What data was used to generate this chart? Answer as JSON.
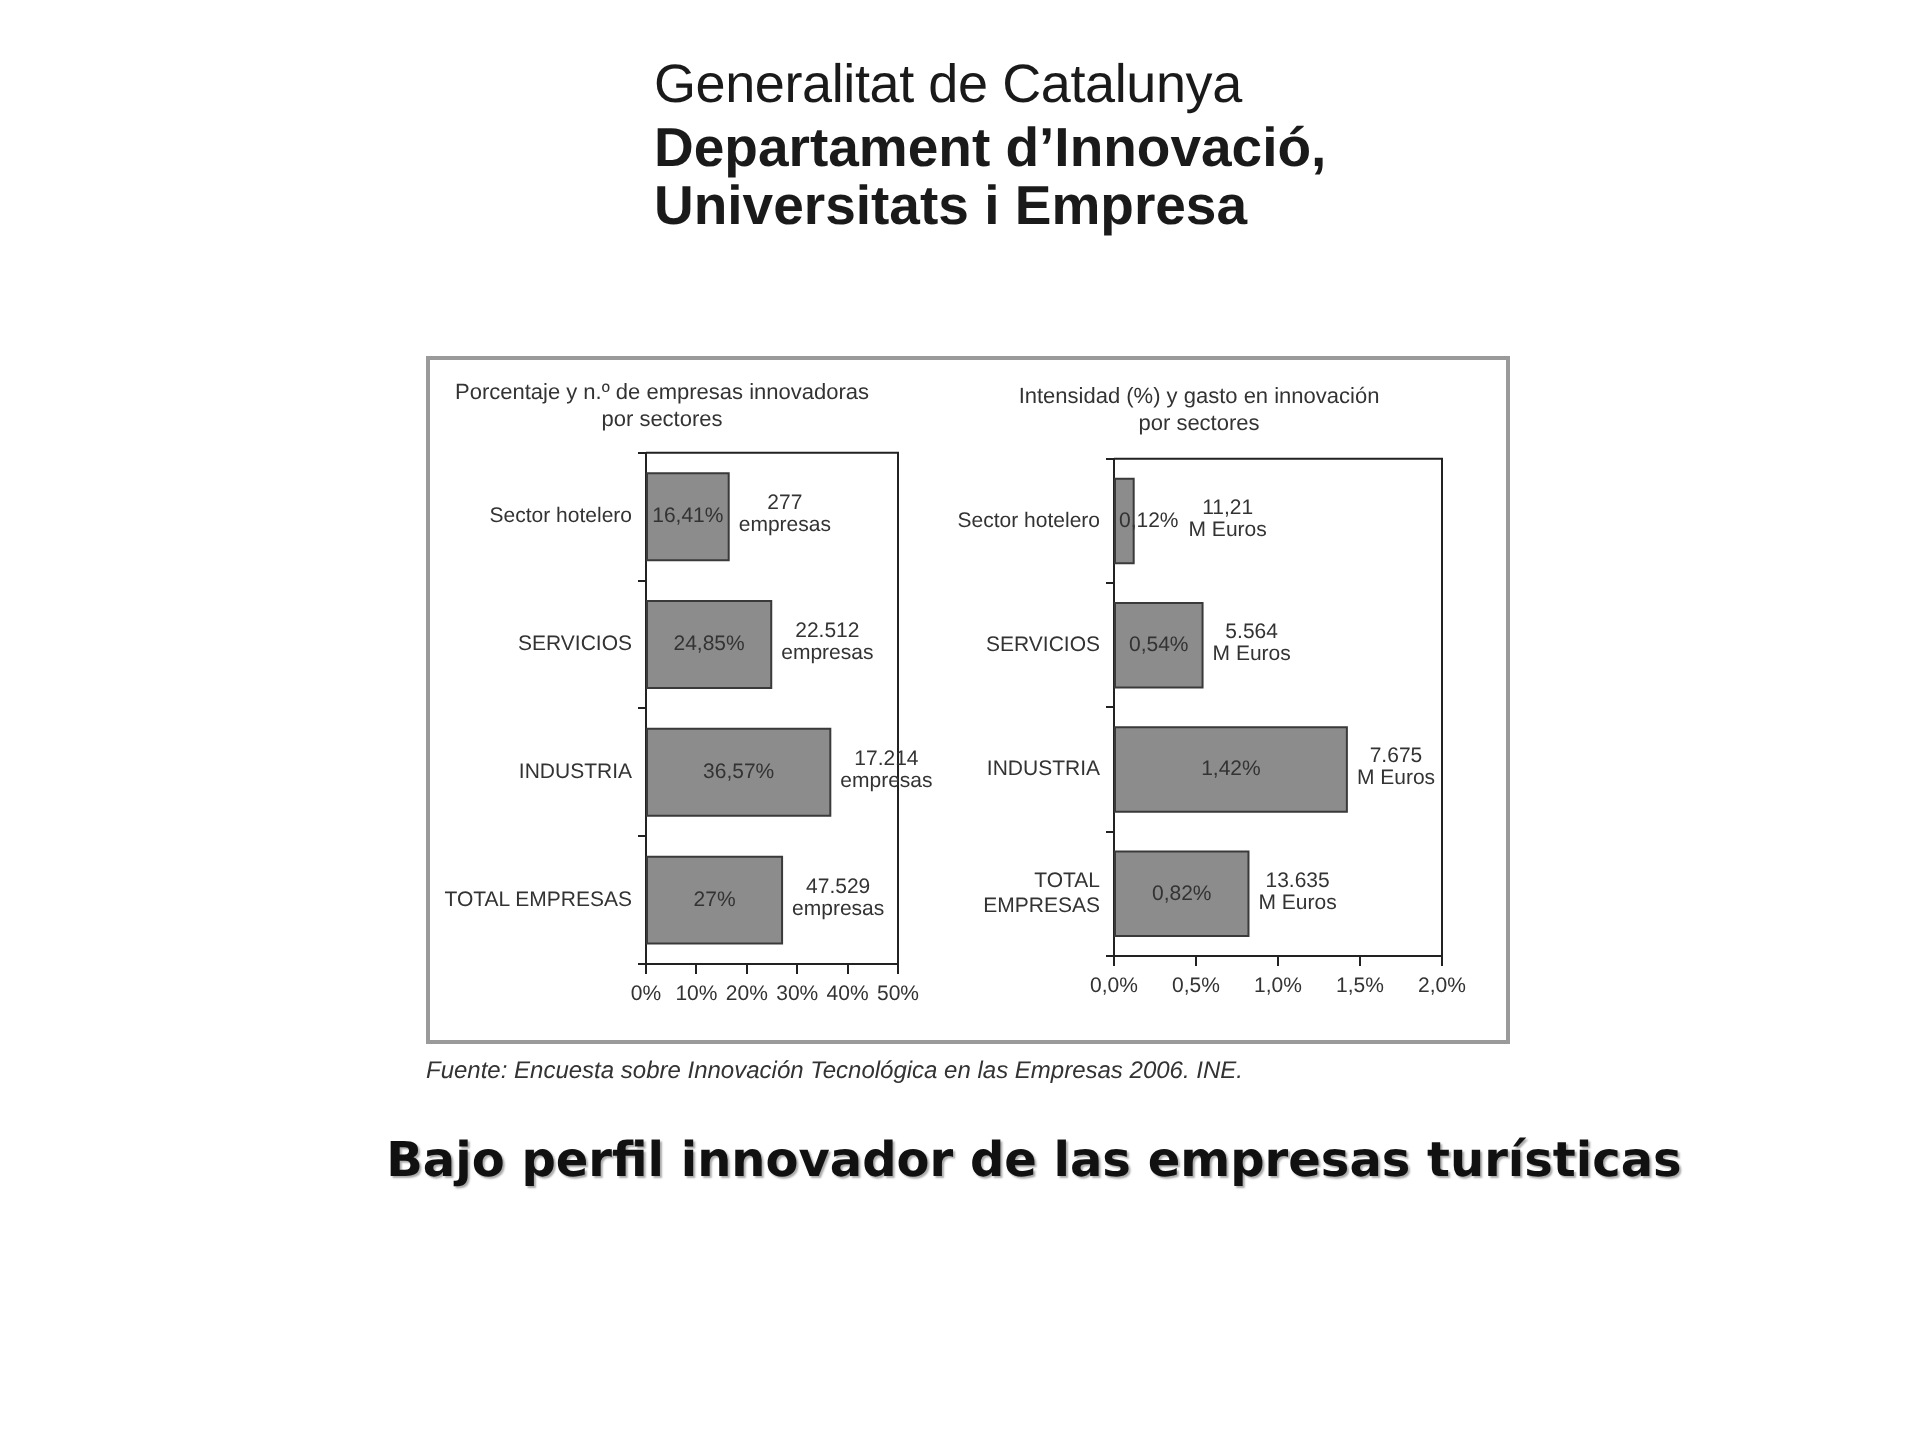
{
  "chart_data": [
    {
      "type": "bar",
      "orientation": "horizontal",
      "title": "Porcentaje y n.º de empresas innovadoras\npor sectores",
      "categories": [
        "Sector hotelero",
        "SERVICIOS",
        "INDUSTRIA",
        "TOTAL EMPRESAS"
      ],
      "values": [
        16.41,
        24.85,
        36.57,
        27
      ],
      "color": "#8c8c8c",
      "value_labels": [
        "16,41%",
        "24,85%",
        "36,57%",
        "27%"
      ],
      "xlim": [
        0,
        50
      ],
      "xticks": [
        {
          "value": 0,
          "label": "0%"
        },
        {
          "value": 10,
          "label": "10%"
        },
        {
          "value": 20,
          "label": "20%"
        },
        {
          "value": 30,
          "label": "30%"
        },
        {
          "value": 40,
          "label": "40%"
        },
        {
          "value": 50,
          "label": "50%"
        }
      ],
      "annotations": [
        {
          "text": "277\nempresas",
          "x": 16.41,
          "y": "Sector hotelero"
        },
        {
          "text": "22.512\nempresas",
          "x": 24.85,
          "y": "SERVICIOS"
        },
        {
          "text": "17.214\nempresas",
          "x": 36.57,
          "y": "INDUSTRIA"
        },
        {
          "text": "47.529\nempresas",
          "x": 27,
          "y": "TOTAL EMPRESAS"
        },
        "Generalitat de Catalunya",
        "Departament d’Innovació,",
        "Universitats i Empresa",
        "Fuente: Encuesta sobre Innovación Tecnológica en las Empresas 2006. INE.",
        "Bajo perfil innovador de las empresas turísticas"
      ]
    },
    {
      "type": "bar",
      "orientation": "horizontal",
      "title": "Intensidad (%) y gasto en innovación\npor sectores",
      "categories": [
        "Sector hotelero",
        "SERVICIOS",
        "INDUSTRIA",
        "TOTAL\nEMPRESAS"
      ],
      "values": [
        0.12,
        0.54,
        1.42,
        0.82
      ],
      "color": "#8c8c8c",
      "value_labels": [
        "0,12%",
        "0,54%",
        "1,42%",
        "0,82%"
      ],
      "xlim": [
        0,
        2
      ],
      "xticks": [
        {
          "value": 0,
          "label": "0,0%"
        },
        {
          "value": 0.5,
          "label": "0,5%"
        },
        {
          "value": 1,
          "label": "1,0%"
        },
        {
          "value": 1.5,
          "label": "1,5%"
        },
        {
          "value": 2,
          "label": "2,0%"
        }
      ],
      "annotations": [
        {
          "text": "11,21\nM Euros",
          "x": 0.12,
          "y": "Sector hotelero"
        },
        {
          "text": "5.564\nM Euros",
          "x": 0.54,
          "y": "SERVICIOS"
        },
        {
          "text": "7.675\nM Euros",
          "x": 1.42,
          "y": "INDUSTRIA"
        },
        {
          "text": "13.635\nM Euros",
          "x": 0.82,
          "y": "TOTAL\nEMPRESAS"
        }
      ]
    }
  ]
}
